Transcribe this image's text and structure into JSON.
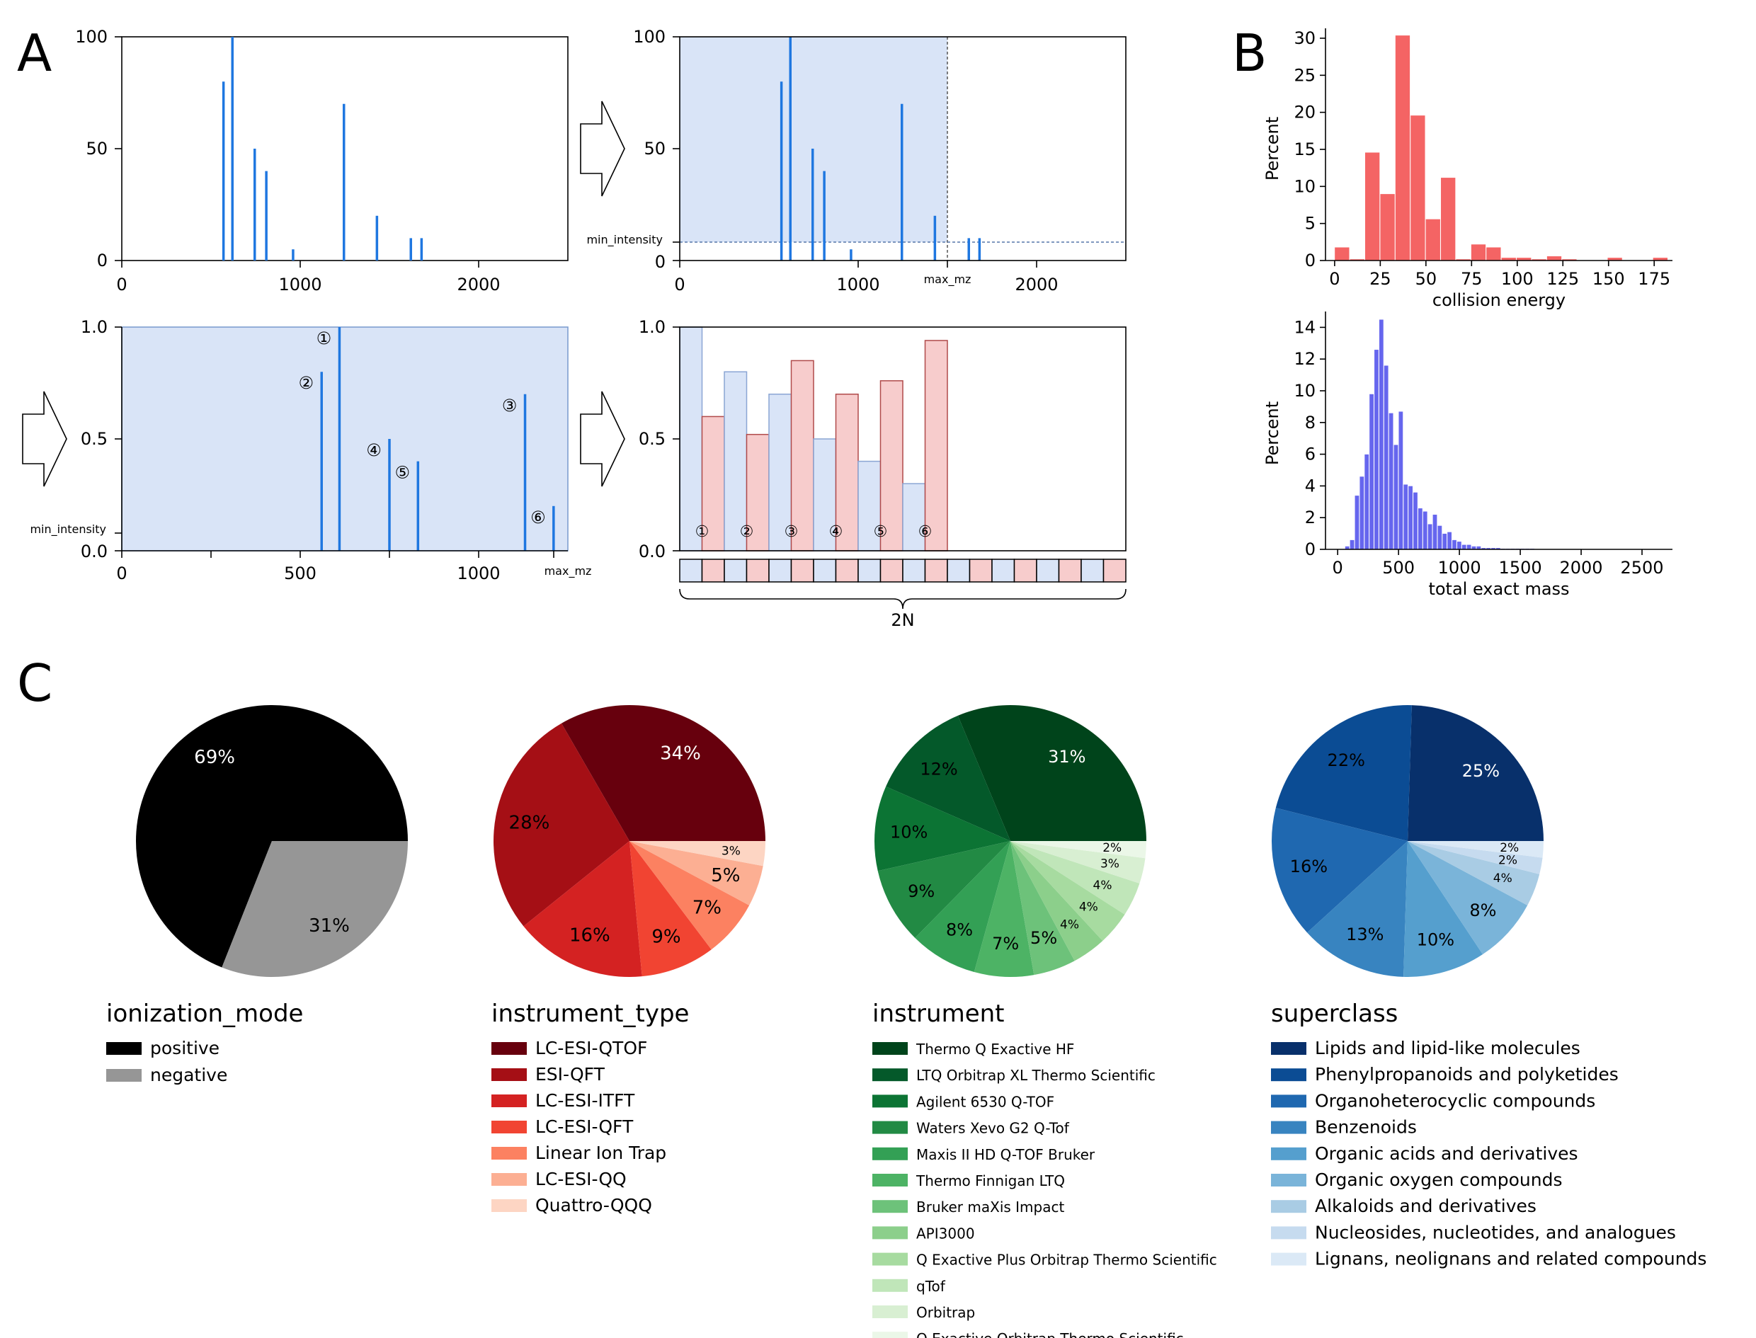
{
  "panel_labels": {
    "a": "A",
    "b": "B",
    "c": "C"
  },
  "colors": {
    "peak": "#1f77e0",
    "shade": "#d9e4f7",
    "shade_edge": "#7f9fd0",
    "mz_box": "#d9e4f7",
    "int_box": "#f7cccc",
    "int_edge": "#b04a4a",
    "ce_hist": "#f46464",
    "mass_hist": "#6666ee"
  },
  "panel_a": {
    "raw_spectrum": {
      "x_ticks": [
        "0",
        "1000",
        "2000"
      ],
      "y_ticks": [
        "0",
        "50",
        "100"
      ],
      "peaks": [
        {
          "mz": 570,
          "intensity": 80
        },
        {
          "mz": 620,
          "intensity": 100
        },
        {
          "mz": 745,
          "intensity": 50
        },
        {
          "mz": 810,
          "intensity": 40
        },
        {
          "mz": 960,
          "intensity": 5
        },
        {
          "mz": 1245,
          "intensity": 70
        },
        {
          "mz": 1430,
          "intensity": 20
        },
        {
          "mz": 1620,
          "intensity": 10
        },
        {
          "mz": 1680,
          "intensity": 10
        }
      ],
      "xlim": [
        0,
        2500
      ],
      "ylim": [
        0,
        100
      ]
    },
    "filter_spectrum": {
      "x_ticks": [
        "0",
        "1000",
        "2000"
      ],
      "y_ticks": [
        "0",
        "50",
        "100"
      ],
      "min_intensity_label": "min_intensity",
      "max_mz_label": "max_mz",
      "min_intensity": 8,
      "max_mz": 1500
    },
    "normalized_spectrum": {
      "x_ticks": [
        "0",
        "500",
        "1000"
      ],
      "y_ticks": [
        "0.0",
        "0.5",
        "1.0"
      ],
      "min_intensity_label": "min_intensity",
      "max_mz_label": "max_mz",
      "min_intensity": 0.08,
      "xlim": [
        0,
        1250
      ],
      "peaks": [
        {
          "mz": 610,
          "intensity": 1.0,
          "rank": "①"
        },
        {
          "mz": 560,
          "intensity": 0.8,
          "rank": "②"
        },
        {
          "mz": 1130,
          "intensity": 0.7,
          "rank": "③"
        },
        {
          "mz": 750,
          "intensity": 0.5,
          "rank": "④"
        },
        {
          "mz": 830,
          "intensity": 0.4,
          "rank": "⑤"
        },
        {
          "mz": 1210,
          "intensity": 0.2,
          "rank": "⑥"
        }
      ]
    },
    "vector": {
      "y_ticks": [
        "0.0",
        "0.5",
        "1.0"
      ],
      "mz_values": [
        1.0,
        0.8,
        0.7,
        0.5,
        0.4,
        0.3
      ],
      "int_values": [
        0.6,
        0.52,
        0.85,
        0.7,
        0.76,
        0.94
      ],
      "ranks": [
        "①",
        "②",
        "③",
        "④",
        "⑤",
        "⑥"
      ],
      "slots": 10,
      "brace_label": "2N"
    }
  },
  "panel_b": {
    "collision_energy": {
      "ylabel": "Percent",
      "xlabel": "collision energy",
      "x_ticks": [
        "0",
        "25",
        "50",
        "75",
        "100",
        "125",
        "150",
        "175"
      ],
      "y_ticks": [
        "0",
        "5",
        "10",
        "15",
        "20",
        "25",
        "30"
      ],
      "xlim": [
        -5,
        185
      ],
      "ylim": [
        0,
        30
      ]
    },
    "mass": {
      "ylabel": "Percent",
      "xlabel": "total exact mass",
      "x_ticks": [
        "0",
        "500",
        "1000",
        "1500",
        "2000",
        "2500"
      ],
      "y_ticks": [
        "0",
        "2",
        "4",
        "6",
        "8",
        "10",
        "12",
        "14"
      ],
      "xlim": [
        -100,
        2750
      ],
      "ylim": [
        0,
        15
      ]
    }
  },
  "chart_data": [
    {
      "type": "bar",
      "title": "",
      "xlabel": "collision energy",
      "ylabel": "Percent",
      "bin_width": 8.3,
      "x": [
        0,
        8.3,
        16.6,
        24.9,
        33.2,
        41.5,
        49.8,
        58.1,
        66.4,
        74.7,
        83.0,
        91.3,
        99.6,
        107.9,
        116.2,
        124.5,
        149.4,
        174.3
      ],
      "values": [
        1.8,
        0.2,
        14.6,
        9.0,
        30.4,
        19.6,
        5.6,
        11.2,
        0.2,
        2.2,
        1.8,
        0.4,
        0.4,
        0.2,
        0.6,
        0.2,
        0.4,
        0.4
      ],
      "xlim": [
        -5,
        185
      ],
      "ylim": [
        0,
        30
      ]
    },
    {
      "type": "bar",
      "title": "",
      "xlabel": "total exact mass",
      "ylabel": "Percent",
      "bin_width": 40,
      "x": [
        60,
        100,
        140,
        180,
        220,
        260,
        300,
        340,
        380,
        420,
        460,
        500,
        540,
        580,
        620,
        660,
        700,
        740,
        780,
        820,
        860,
        900,
        940,
        980,
        1020,
        1060,
        1100,
        1140,
        1180,
        1220,
        1260,
        1300,
        1340,
        1380,
        1420,
        1460,
        1500,
        1540,
        1580
      ],
      "values": [
        0.2,
        0.6,
        3.4,
        4.6,
        6.0,
        9.8,
        12.6,
        14.5,
        11.6,
        8.6,
        6.6,
        8.7,
        4.1,
        4.0,
        3.6,
        2.6,
        2.4,
        1.6,
        2.2,
        1.5,
        1.0,
        1.1,
        0.6,
        0.5,
        0.3,
        0.3,
        0.2,
        0.2,
        0.1,
        0.1,
        0.1,
        0.1,
        0.05,
        0.05,
        0.05,
        0.05,
        0.05,
        0.05,
        0.05
      ],
      "xlim": [
        -100,
        2750
      ],
      "ylim": [
        0,
        15
      ]
    },
    {
      "type": "pie",
      "title": "ionization_mode",
      "labels": [
        "positive",
        "negative"
      ],
      "values": [
        69,
        31
      ],
      "pct_labels": [
        "69%",
        "31%"
      ],
      "colors": [
        "#000000",
        "#969696"
      ],
      "text_colors": [
        "#ffffff",
        "#000000"
      ]
    },
    {
      "type": "pie",
      "title": "instrument_type",
      "labels": [
        "LC-ESI-QTOF",
        "ESI-QFT",
        "LC-ESI-ITFT",
        "LC-ESI-QFT",
        "Linear Ion Trap",
        "LC-ESI-QQ",
        "Quattro-QQQ"
      ],
      "values": [
        34,
        28,
        16,
        9,
        7,
        5,
        3
      ],
      "pct_labels": [
        "34%",
        "28%",
        "16%",
        "9%",
        "7%",
        "5%",
        "3%"
      ],
      "colors": [
        "#67000d",
        "#a50f15",
        "#d42222",
        "#f14432",
        "#fc8161",
        "#fcaf93",
        "#fdd5c3"
      ],
      "text_colors": [
        "#ffffff",
        "#000000",
        "#000000",
        "#000000",
        "#000000",
        "#000000",
        "#000000"
      ]
    },
    {
      "type": "pie",
      "title": "instrument",
      "labels": [
        "Thermo Q Exactive HF",
        "LTQ Orbitrap XL Thermo Scientific",
        "Agilent 6530 Q-TOF",
        "Waters Xevo G2 Q-Tof",
        "Maxis II HD Q-TOF Bruker",
        "Thermo Finnigan LTQ",
        "Bruker maXis Impact",
        "API3000",
        "Q Exactive Plus Orbitrap Thermo Scientific",
        "qTof",
        "Orbitrap",
        "Q Exactive Orbitrap Thermo Scientific"
      ],
      "values": [
        31,
        12,
        10,
        9,
        8,
        7,
        5,
        4,
        4,
        4,
        3,
        2
      ],
      "pct_labels": [
        "31%",
        "12%",
        "10%",
        "9%",
        "8%",
        "7%",
        "5%",
        "4%",
        "4%",
        "4%",
        "3%",
        "2%"
      ],
      "colors": [
        "#00441b",
        "#04592a",
        "#0c7434",
        "#228a44",
        "#33a055",
        "#4db365",
        "#6dc27a",
        "#8ccf8b",
        "#a7dba0",
        "#c0e6b9",
        "#d8efd2",
        "#ebf7e8"
      ],
      "text_colors": [
        "#ffffff",
        "#000000",
        "#000000",
        "#000000",
        "#000000",
        "#000000",
        "#000000",
        "#000000",
        "#000000",
        "#000000",
        "#000000",
        "#000000"
      ]
    },
    {
      "type": "pie",
      "title": "superclass",
      "labels": [
        "Lipids and lipid-like molecules",
        "Phenylpropanoids and polyketides",
        "Organoheterocyclic compounds",
        "Benzenoids",
        "Organic acids and derivatives",
        "Organic oxygen compounds",
        "Alkaloids and derivatives",
        "Nucleosides, nucleotides, and analogues",
        "Lignans, neolignans and related compounds"
      ],
      "values": [
        25,
        22,
        16,
        13,
        10,
        8,
        4,
        2,
        2
      ],
      "pct_labels": [
        "25%",
        "22%",
        "16%",
        "13%",
        "10%",
        "8%",
        "4%",
        "2%",
        "2%"
      ],
      "colors": [
        "#08306b",
        "#0b4c94",
        "#1f68b0",
        "#3884c0",
        "#559fce",
        "#7ab4d9",
        "#a9cce4",
        "#c6dbef",
        "#dbe9f6"
      ],
      "text_colors": [
        "#ffffff",
        "#000000",
        "#000000",
        "#000000",
        "#000000",
        "#000000",
        "#000000",
        "#000000",
        "#000000"
      ]
    }
  ]
}
